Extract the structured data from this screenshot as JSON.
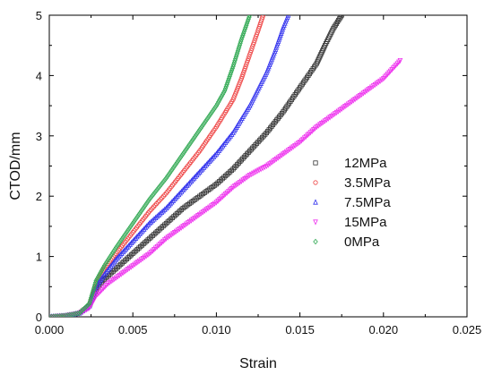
{
  "chart_data": {
    "type": "scatter",
    "xlabel": "Strain",
    "ylabel": "CTOD/mm",
    "xlim": [
      0,
      0.025
    ],
    "ylim": [
      0,
      5
    ],
    "xticks": [
      0,
      0.005,
      0.01,
      0.015,
      0.02,
      0.025
    ],
    "yticks": [
      0,
      1,
      2,
      3,
      4,
      5
    ],
    "xtick_labels": [
      "0.000",
      "0.005",
      "0.010",
      "0.015",
      "0.020",
      "0.025"
    ],
    "ytick_labels": [
      "0",
      "1",
      "2",
      "3",
      "4",
      "5"
    ],
    "grid": false,
    "legend_position": "center-right",
    "series": [
      {
        "name": "12MPa",
        "color": "#333333",
        "marker": "square",
        "points": [
          [
            0,
            0
          ],
          [
            0.001,
            0.02
          ],
          [
            0.0018,
            0.06
          ],
          [
            0.0024,
            0.18
          ],
          [
            0.0028,
            0.45
          ],
          [
            0.0032,
            0.6
          ],
          [
            0.004,
            0.8
          ],
          [
            0.005,
            1.05
          ],
          [
            0.006,
            1.3
          ],
          [
            0.007,
            1.55
          ],
          [
            0.008,
            1.8
          ],
          [
            0.009,
            2.0
          ],
          [
            0.01,
            2.2
          ],
          [
            0.011,
            2.45
          ],
          [
            0.012,
            2.75
          ],
          [
            0.013,
            3.05
          ],
          [
            0.014,
            3.4
          ],
          [
            0.015,
            3.8
          ],
          [
            0.016,
            4.2
          ],
          [
            0.0165,
            4.5
          ],
          [
            0.017,
            4.78
          ],
          [
            0.0175,
            5.0
          ]
        ]
      },
      {
        "name": "3.5MPa",
        "color": "#ee4444",
        "marker": "circle",
        "points": [
          [
            0,
            0
          ],
          [
            0.001,
            0.02
          ],
          [
            0.0018,
            0.06
          ],
          [
            0.0024,
            0.2
          ],
          [
            0.0028,
            0.55
          ],
          [
            0.0033,
            0.8
          ],
          [
            0.004,
            1.05
          ],
          [
            0.005,
            1.4
          ],
          [
            0.006,
            1.75
          ],
          [
            0.007,
            2.05
          ],
          [
            0.008,
            2.4
          ],
          [
            0.009,
            2.75
          ],
          [
            0.01,
            3.15
          ],
          [
            0.011,
            3.6
          ],
          [
            0.0115,
            3.95
          ],
          [
            0.012,
            4.35
          ],
          [
            0.0125,
            4.75
          ],
          [
            0.0128,
            5.0
          ]
        ]
      },
      {
        "name": "7.5MPa",
        "color": "#3333ee",
        "marker": "triangle",
        "points": [
          [
            0,
            0
          ],
          [
            0.001,
            0.02
          ],
          [
            0.0018,
            0.06
          ],
          [
            0.0024,
            0.18
          ],
          [
            0.0028,
            0.5
          ],
          [
            0.0033,
            0.7
          ],
          [
            0.004,
            0.95
          ],
          [
            0.005,
            1.25
          ],
          [
            0.006,
            1.55
          ],
          [
            0.007,
            1.8
          ],
          [
            0.008,
            2.1
          ],
          [
            0.009,
            2.4
          ],
          [
            0.01,
            2.7
          ],
          [
            0.011,
            3.05
          ],
          [
            0.012,
            3.5
          ],
          [
            0.013,
            4.05
          ],
          [
            0.0135,
            4.4
          ],
          [
            0.014,
            4.8
          ],
          [
            0.0143,
            5.0
          ]
        ]
      },
      {
        "name": "15MPa",
        "color": "#ee33ee",
        "marker": "triangle-down",
        "points": [
          [
            0,
            0
          ],
          [
            0.001,
            0.02
          ],
          [
            0.0018,
            0.06
          ],
          [
            0.0024,
            0.15
          ],
          [
            0.0028,
            0.35
          ],
          [
            0.0035,
            0.55
          ],
          [
            0.005,
            0.85
          ],
          [
            0.006,
            1.05
          ],
          [
            0.007,
            1.3
          ],
          [
            0.008,
            1.5
          ],
          [
            0.009,
            1.7
          ],
          [
            0.01,
            1.9
          ],
          [
            0.011,
            2.15
          ],
          [
            0.012,
            2.35
          ],
          [
            0.013,
            2.5
          ],
          [
            0.014,
            2.7
          ],
          [
            0.015,
            2.9
          ],
          [
            0.016,
            3.15
          ],
          [
            0.017,
            3.35
          ],
          [
            0.018,
            3.55
          ],
          [
            0.019,
            3.75
          ],
          [
            0.02,
            3.95
          ],
          [
            0.0205,
            4.1
          ],
          [
            0.021,
            4.25
          ]
        ]
      },
      {
        "name": "0MPa",
        "color": "#33aa55",
        "marker": "diamond",
        "points": [
          [
            0,
            0
          ],
          [
            0.001,
            0.02
          ],
          [
            0.0018,
            0.06
          ],
          [
            0.0024,
            0.22
          ],
          [
            0.0028,
            0.6
          ],
          [
            0.0033,
            0.85
          ],
          [
            0.004,
            1.15
          ],
          [
            0.005,
            1.55
          ],
          [
            0.006,
            1.95
          ],
          [
            0.007,
            2.3
          ],
          [
            0.008,
            2.7
          ],
          [
            0.009,
            3.1
          ],
          [
            0.01,
            3.5
          ],
          [
            0.0105,
            3.75
          ],
          [
            0.011,
            4.15
          ],
          [
            0.0115,
            4.6
          ],
          [
            0.012,
            5.0
          ]
        ]
      }
    ]
  }
}
